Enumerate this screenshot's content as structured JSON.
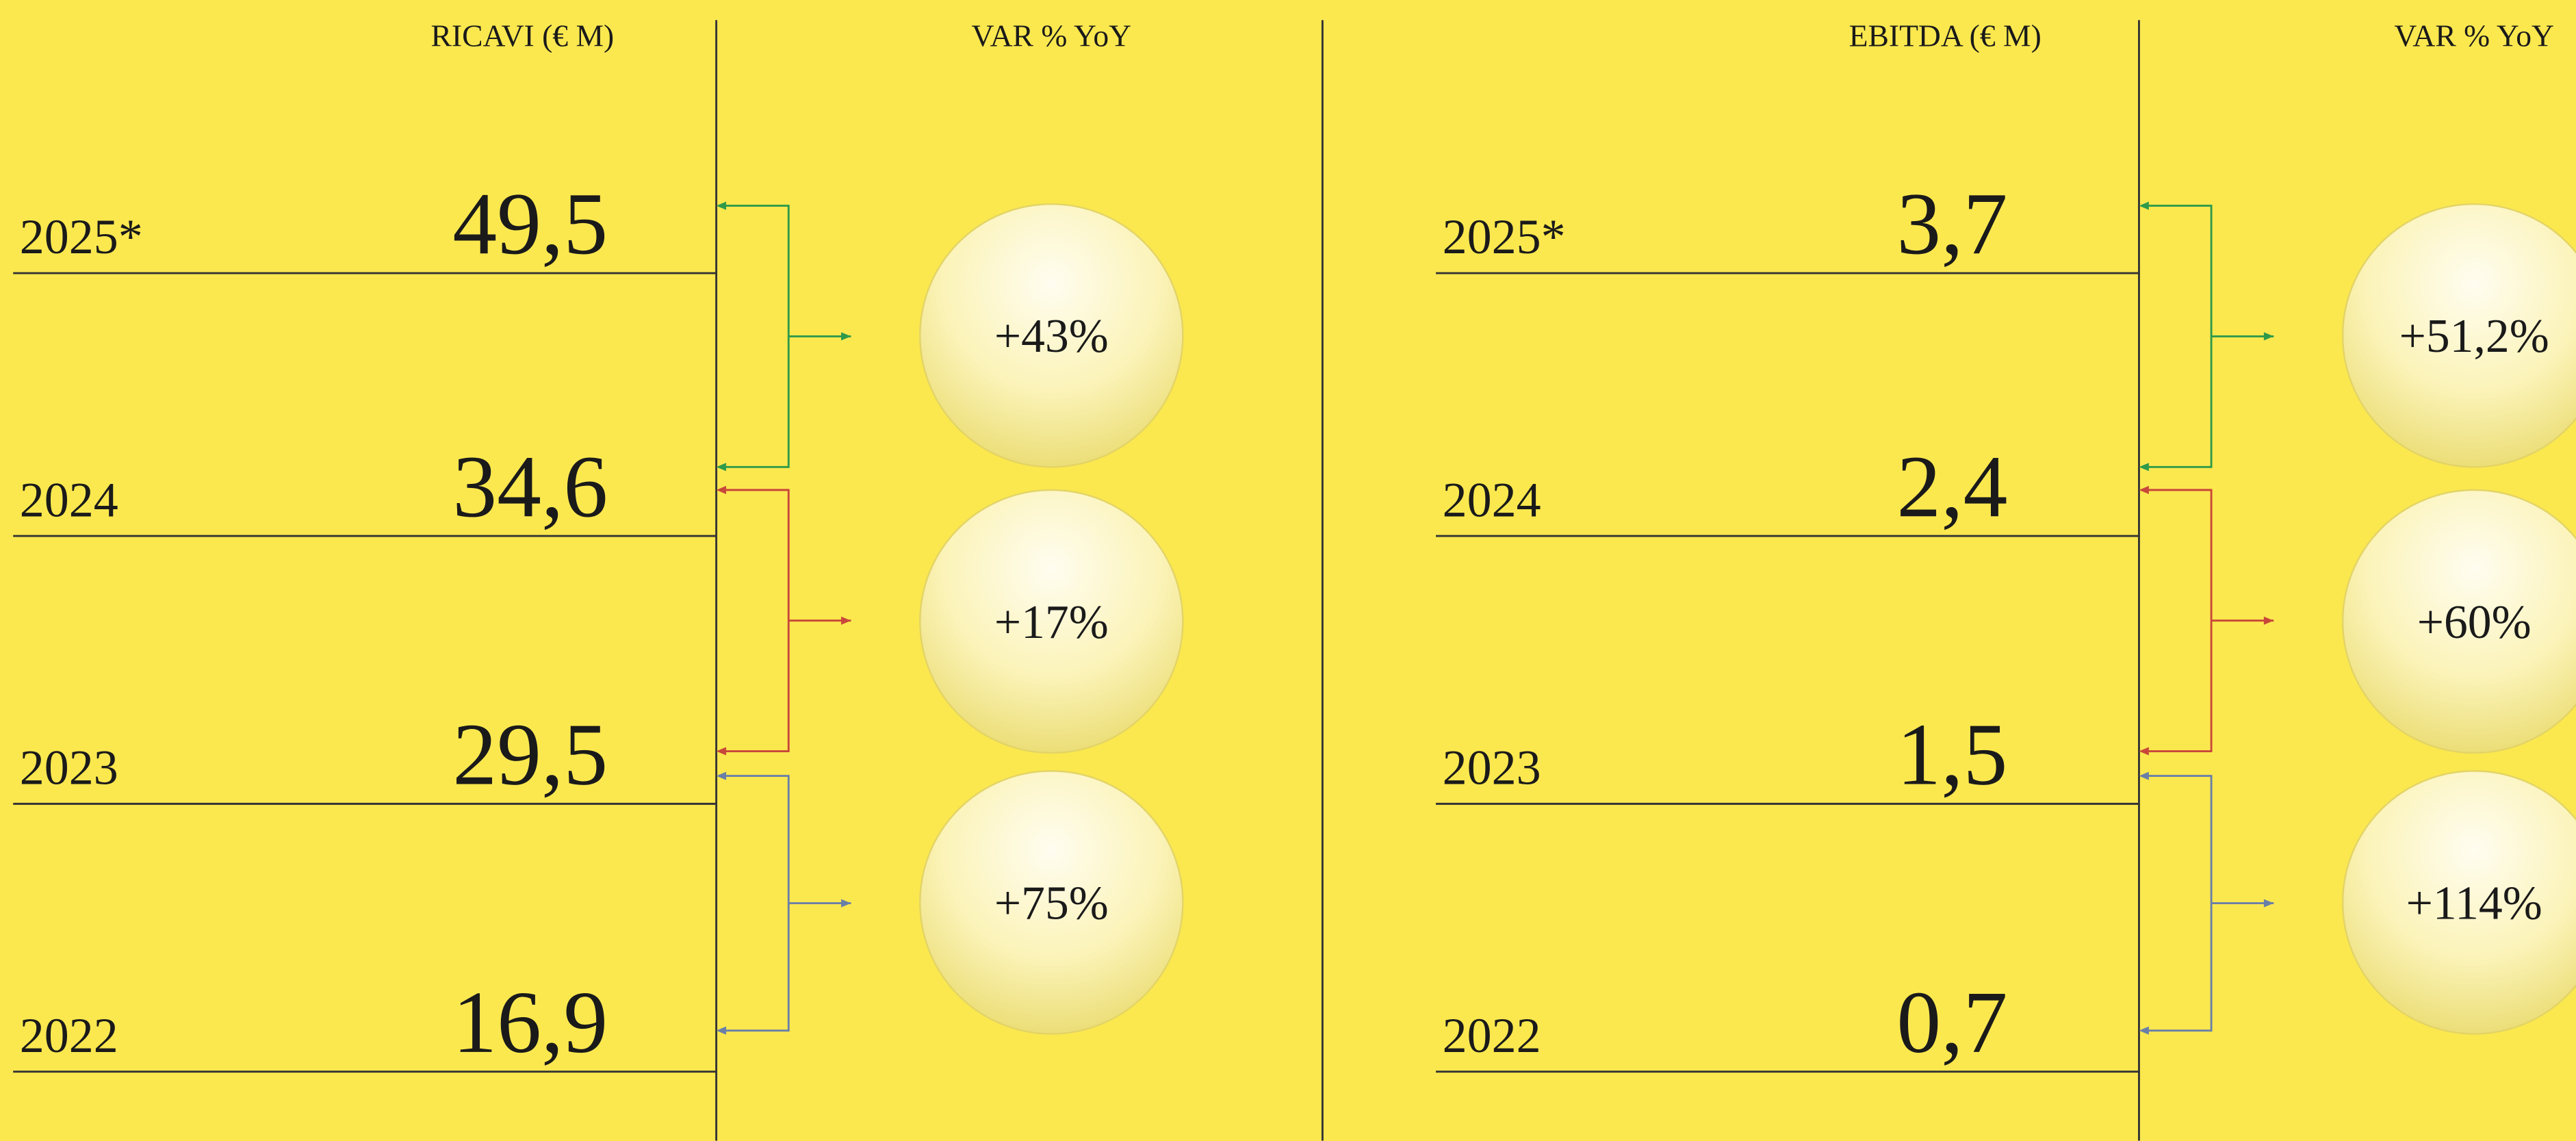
{
  "panels": [
    {
      "value_header": "RICAVI (€ M)",
      "change_header": "VAR % YoY",
      "rows": [
        {
          "year": "2025*",
          "value": "49,5"
        },
        {
          "year": "2024",
          "value": "34,6"
        },
        {
          "year": "2023",
          "value": "29,5"
        },
        {
          "year": "2022",
          "value": "16,9"
        }
      ],
      "changes": [
        "+43%",
        "+17%",
        "+75%"
      ]
    },
    {
      "value_header": "EBITDA (€ M)",
      "change_header": "VAR % YoY",
      "rows": [
        {
          "year": "2025*",
          "value": "3,7"
        },
        {
          "year": "2024",
          "value": "2,4"
        },
        {
          "year": "2023",
          "value": "1,5"
        },
        {
          "year": "2022",
          "value": "0,7"
        }
      ],
      "changes": [
        "+51,2%",
        "+60%",
        "+114%"
      ]
    }
  ]
}
